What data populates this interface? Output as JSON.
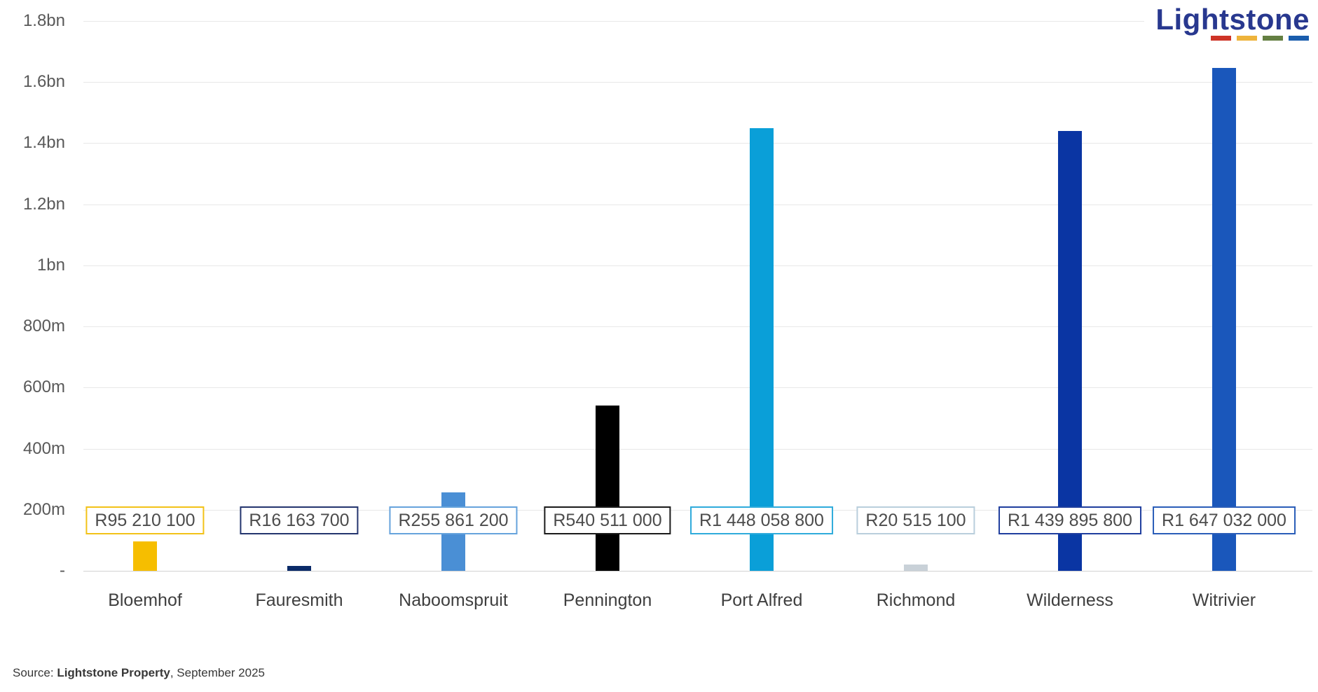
{
  "logo": {
    "text": "Lightstone",
    "underline_colors": [
      "#CE3427",
      "#EEB33B",
      "#647F42",
      "#1A5DAD"
    ],
    "text_color": "#28388F"
  },
  "source": {
    "prefix": "Source: ",
    "bold": "Lightstone Property",
    "suffix": ", September 2025"
  },
  "chart_data": {
    "type": "bar",
    "title": "",
    "xlabel": "",
    "ylabel": "",
    "categories": [
      "Bloemhof",
      "Fauresmith",
      "Naboomspruit",
      "Pennington",
      "Port Alfred",
      "Richmond",
      "Wilderness",
      "Witrivier"
    ],
    "values": [
      95210100,
      16163700,
      255861200,
      540511000,
      1448058800,
      20515100,
      1439895800,
      1647032000
    ],
    "value_labels": [
      "R95 210 100",
      "R16 163 700",
      "R255 861 200",
      "R540 511 000",
      "R1 448 058 800",
      "R20 515 100",
      "R1 439 895 800",
      "R1 647 032 000"
    ],
    "bar_colors": [
      "#F6BE00",
      "#0A2A68",
      "#4A8FD5",
      "#000000",
      "#0A9FD8",
      "#C9D1D8",
      "#0A35A3",
      "#1A57BB"
    ],
    "label_border_colors": [
      "#F2C218",
      "#24356E",
      "#66A3DC",
      "#1B1B1B",
      "#2FABDB",
      "#B9CEDC",
      "#1F3E9E",
      "#2A5DB8"
    ],
    "ylim": [
      0,
      1800000000
    ],
    "ytick_interval": 200000000,
    "ytick_labels": [
      "-",
      "200m",
      "400m",
      "600m",
      "800m",
      "1bn",
      "1.2bn",
      "1.4bn",
      "1.6bn",
      "1.8bn"
    ],
    "grid": true,
    "legend": false,
    "gridline_color": "#e8e8e8",
    "ytick_color": "#595959",
    "category_color": "#3f3f3f",
    "value_label_color": "#4c4c4c"
  }
}
